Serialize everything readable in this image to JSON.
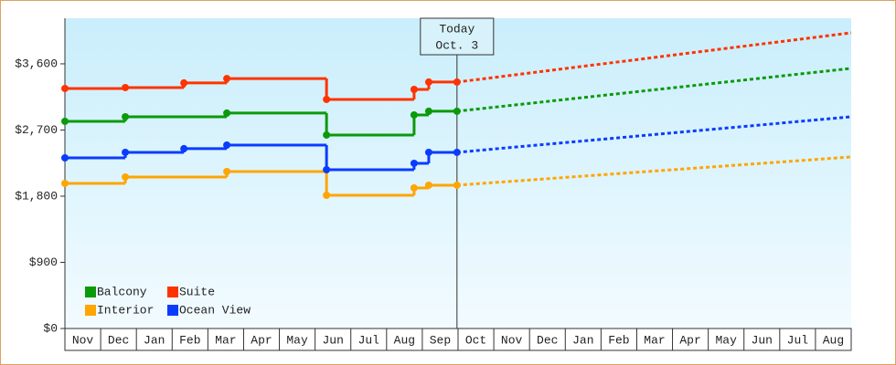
{
  "chart_data": {
    "type": "step-line",
    "categories": [
      "Nov",
      "Dec",
      "Jan",
      "Feb",
      "Mar",
      "Apr",
      "May",
      "Jun",
      "Jul",
      "Aug",
      "Sep",
      "Oct",
      "Nov",
      "Dec",
      "Jan",
      "Feb",
      "Mar",
      "Apr",
      "May",
      "Jun",
      "Jul",
      "Aug"
    ],
    "xlim": [
      0,
      22
    ],
    "ylim": [
      0,
      4220
    ],
    "yticks": [
      {
        "value": 0,
        "label": "$0"
      },
      {
        "value": 900,
        "label": "$900"
      },
      {
        "value": 1800,
        "label": "$1,800"
      },
      {
        "value": 2700,
        "label": "$2,700"
      },
      {
        "value": 3600,
        "label": "$3,600"
      }
    ],
    "legend": "lower-left",
    "projection_style": "dashed",
    "annotation": {
      "title": "Today",
      "date": "Oct. 3",
      "x": 10.97
    },
    "series": [
      {
        "name": "Balcony",
        "color": "#0a9a0a",
        "x": [
          0,
          1.69,
          4.53,
          7.32,
          9.77,
          10.18,
          10.97
        ],
        "values": [
          2818,
          2880,
          2930,
          2632,
          2905,
          2955,
          2955
        ],
        "projection": {
          "x": [
            10.97,
            22
          ],
          "values": [
            2955,
            3538
          ]
        }
      },
      {
        "name": "Suite",
        "color": "#ff3300",
        "x": [
          0,
          1.69,
          3.33,
          4.53,
          7.32,
          9.77,
          10.18,
          10.97
        ],
        "values": [
          3265,
          3277,
          3340,
          3400,
          3116,
          3252,
          3352,
          3352
        ],
        "projection": {
          "x": [
            10.97,
            22
          ],
          "values": [
            3352,
            4022
          ]
        }
      },
      {
        "name": "Interior",
        "color": "#ffa500",
        "x": [
          0,
          1.69,
          4.53,
          7.32,
          9.77,
          10.18,
          10.97
        ],
        "values": [
          1974,
          2061,
          2135,
          1812,
          1912,
          1949,
          1949
        ],
        "projection": {
          "x": [
            10.97,
            22
          ],
          "values": [
            1949,
            2334
          ]
        }
      },
      {
        "name": "Ocean View",
        "color": "#0a3cff",
        "x": [
          0,
          1.69,
          3.33,
          4.53,
          7.32,
          9.77,
          10.18,
          10.97
        ],
        "values": [
          2321,
          2396,
          2446,
          2495,
          2160,
          2247,
          2396,
          2396
        ],
        "projection": {
          "x": [
            10.97,
            22
          ],
          "values": [
            2396,
            2880
          ]
        }
      }
    ]
  }
}
